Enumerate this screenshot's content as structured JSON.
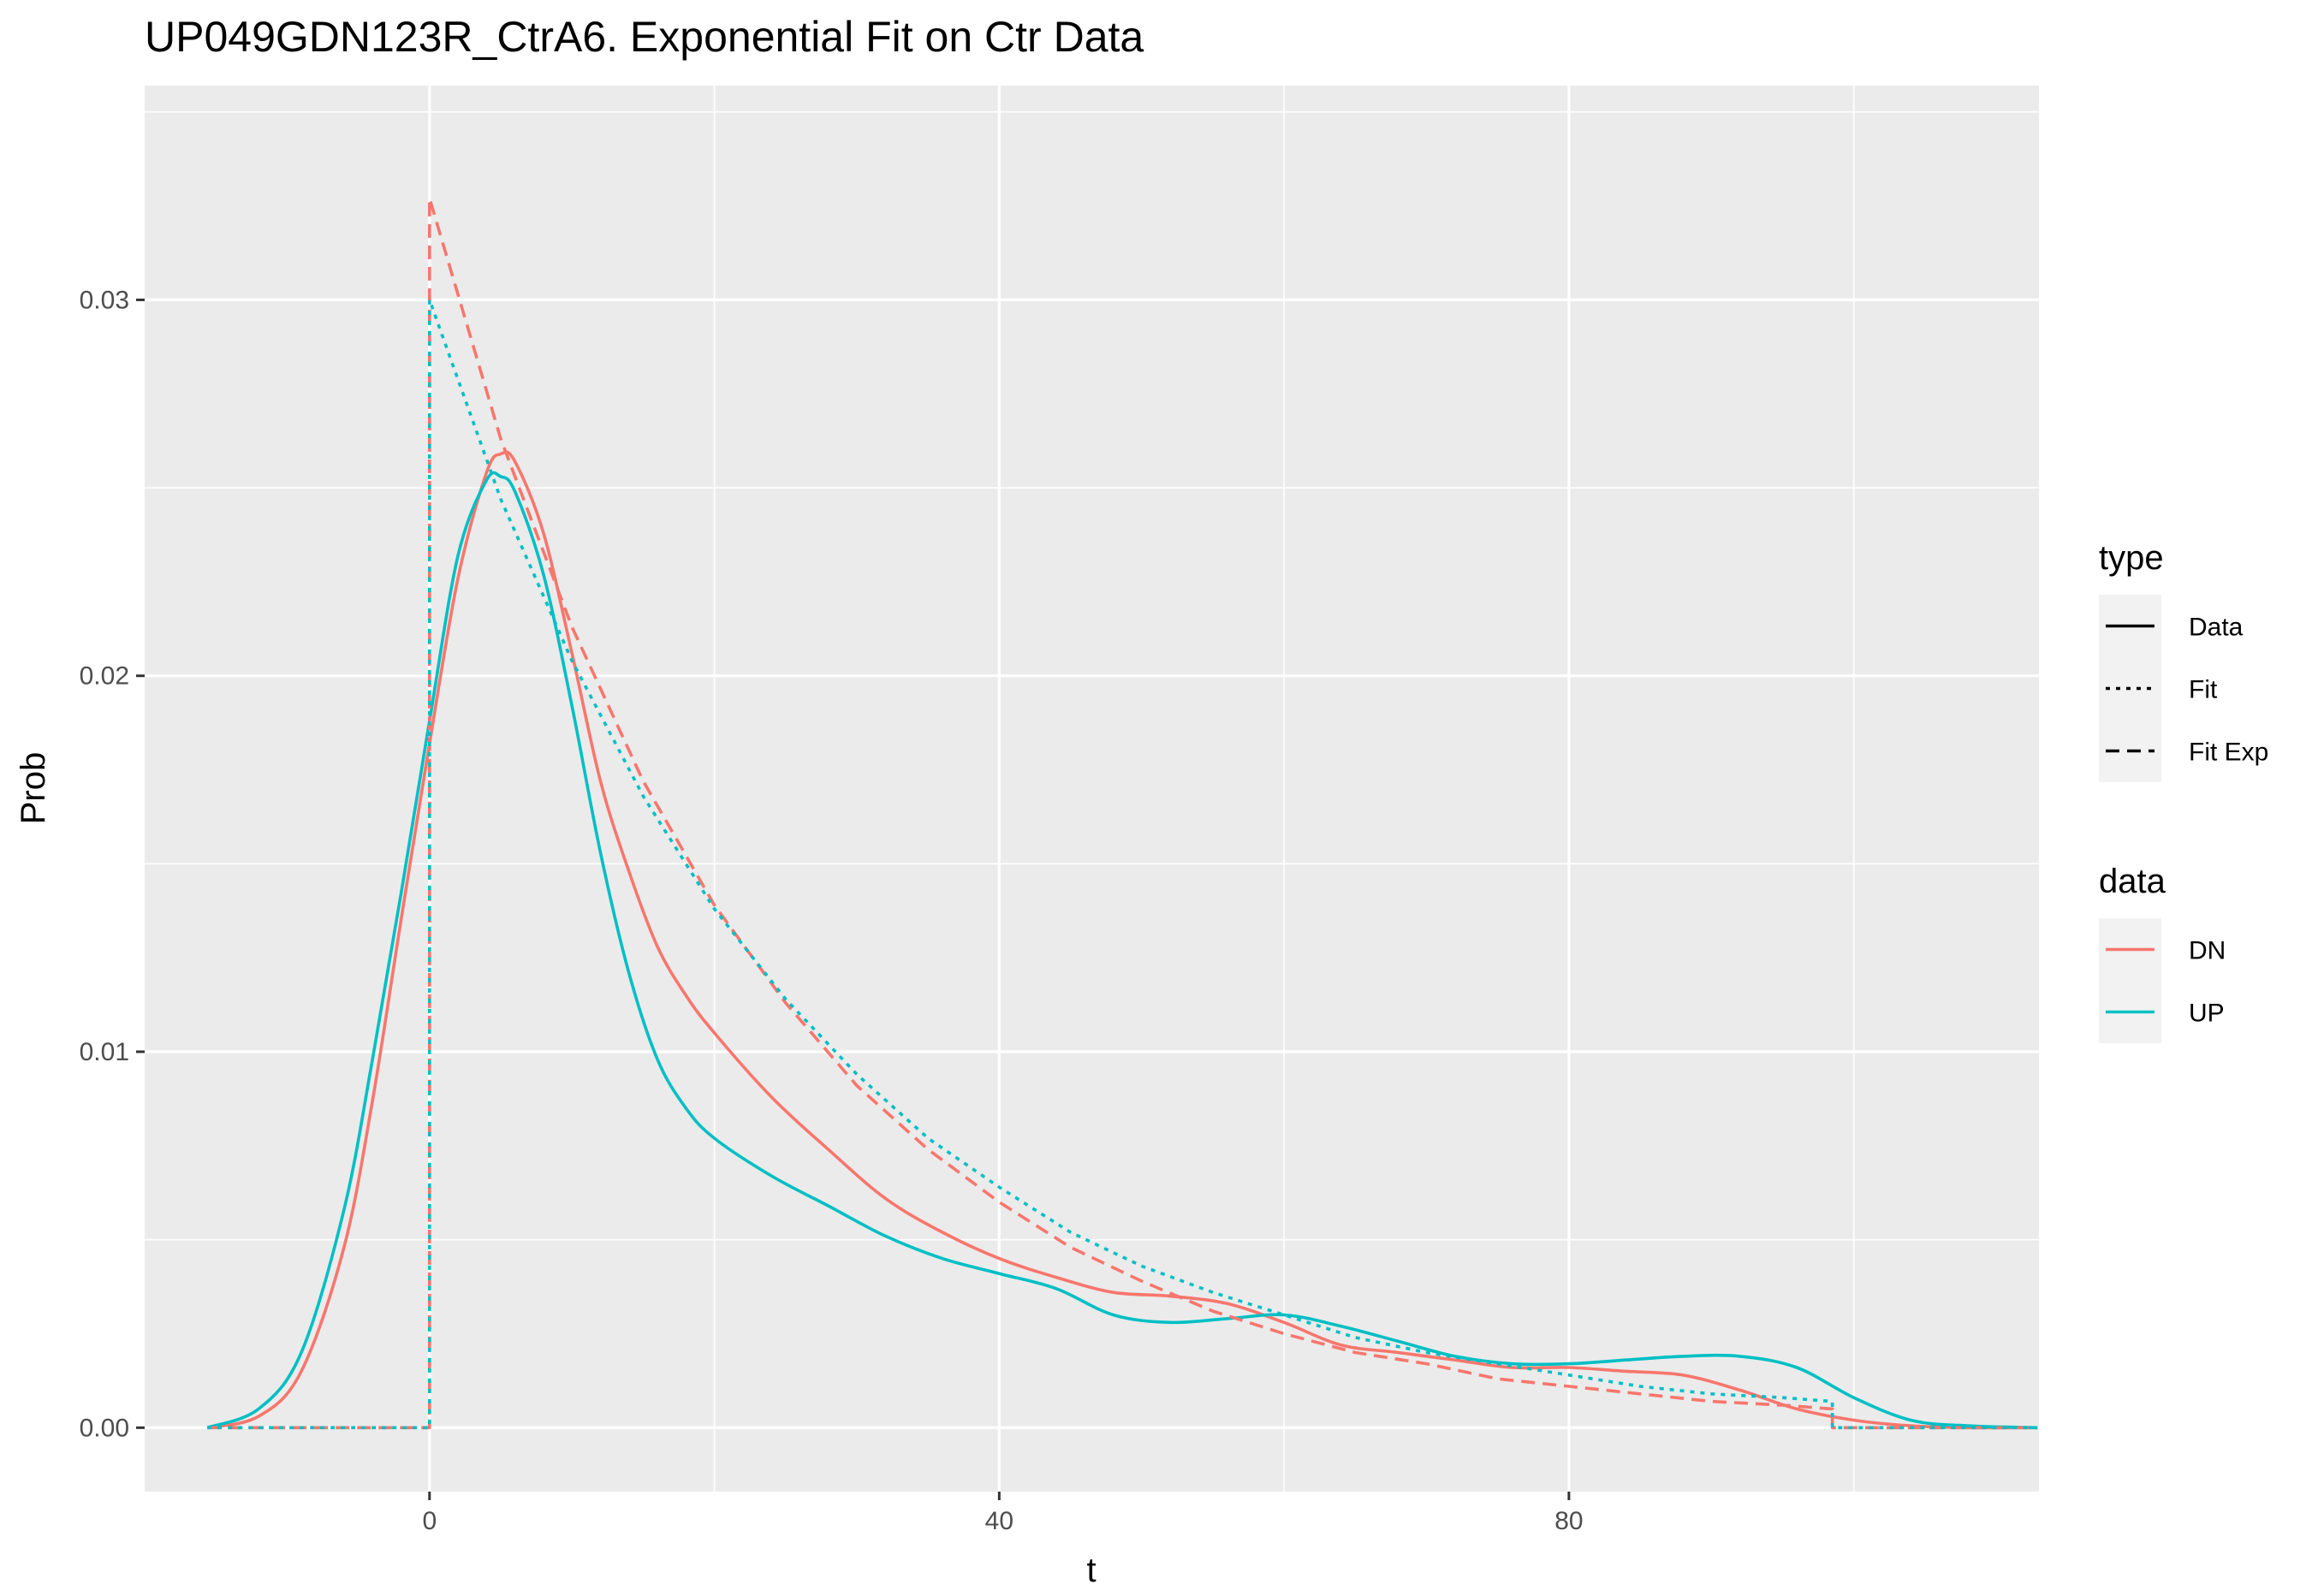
{
  "chart_data": {
    "type": "line",
    "title": "UP049GDN123R_CtrA6. Exponential Fit on Ctr Data",
    "xlabel": "t",
    "ylabel": "Prob",
    "xlim": [
      -20,
      113
    ],
    "ylim": [
      -0.0017,
      0.0357
    ],
    "x_ticks": [
      0,
      40,
      80
    ],
    "x_tick_labels": [
      "0",
      "40",
      "80"
    ],
    "y_ticks": [
      0.0,
      0.01,
      0.02,
      0.03
    ],
    "y_tick_labels": [
      "0.00",
      "0.01",
      "0.02",
      "0.03"
    ],
    "grid": true,
    "legend_placement": "right",
    "legend": {
      "type": {
        "title": "type",
        "entries": [
          {
            "label": "Data",
            "dash": "solid"
          },
          {
            "label": "Fit",
            "dash": "dotted"
          },
          {
            "label": "Fit Exp",
            "dash": "dashed"
          }
        ]
      },
      "data": {
        "title": "data",
        "entries": [
          {
            "label": "DN",
            "color": "#F8766D"
          },
          {
            "label": "UP",
            "color": "#00BFC4"
          }
        ]
      }
    },
    "colors": {
      "DN": "#F8766D",
      "UP": "#00BFC4",
      "panel": "#EBEBEB",
      "grid": "#FFFFFF"
    },
    "series": [
      {
        "data": "DN",
        "type": "Data",
        "x": [
          -15.6,
          -12,
          -9,
          -6,
          -4,
          -2,
          0,
          2,
          4,
          5,
          6,
          8,
          10,
          12,
          14,
          16,
          18,
          20,
          24,
          28,
          32,
          36,
          40,
          44,
          48,
          52,
          56,
          60,
          64,
          68,
          72,
          76,
          80,
          84,
          88,
          92,
          96,
          100,
          104,
          108,
          112.9
        ],
        "y": [
          0.0,
          0.0003,
          0.0015,
          0.0048,
          0.0087,
          0.0135,
          0.0182,
          0.0226,
          0.0254,
          0.0259,
          0.0257,
          0.0238,
          0.0206,
          0.0172,
          0.0148,
          0.0128,
          0.0115,
          0.0105,
          0.0088,
          0.0074,
          0.0061,
          0.0052,
          0.0045,
          0.004,
          0.0036,
          0.0035,
          0.0033,
          0.0028,
          0.0022,
          0.002,
          0.0018,
          0.0016,
          0.0016,
          0.0015,
          0.0014,
          0.001,
          0.0005,
          0.0002,
          5e-05,
          0.0,
          0.0
        ]
      },
      {
        "data": "UP",
        "type": "Data",
        "x": [
          -15.6,
          -12,
          -9,
          -6,
          -4,
          -2,
          0,
          2,
          4,
          5,
          6,
          8,
          10,
          12,
          14,
          16,
          18,
          20,
          24,
          28,
          32,
          36,
          40,
          44,
          48,
          52,
          56,
          60,
          64,
          68,
          72,
          76,
          80,
          84,
          88,
          92,
          96,
          100,
          104,
          108,
          112.9
        ],
        "y": [
          0.0,
          0.0005,
          0.002,
          0.0058,
          0.0098,
          0.0142,
          0.0188,
          0.0232,
          0.0252,
          0.0253,
          0.0249,
          0.0227,
          0.0192,
          0.0153,
          0.0121,
          0.0098,
          0.0085,
          0.0077,
          0.0067,
          0.0059,
          0.0051,
          0.0045,
          0.0041,
          0.0037,
          0.003,
          0.0028,
          0.0029,
          0.003,
          0.0027,
          0.0023,
          0.0019,
          0.0017,
          0.0017,
          0.0018,
          0.0019,
          0.0019,
          0.0016,
          0.0008,
          0.0002,
          5e-05,
          0.0
        ]
      },
      {
        "data": "DN",
        "type": "Fit Exp",
        "x": [
          -15.6,
          0,
          0,
          5,
          10,
          15,
          20,
          25,
          30,
          35,
          40,
          45,
          50,
          55,
          60,
          65,
          70,
          75,
          80,
          85,
          90,
          95,
          98.5,
          98.5,
          112.9
        ],
        "y": [
          0.0,
          0.0,
          0.0327,
          0.0263,
          0.0213,
          0.0172,
          0.0139,
          0.0113,
          0.0091,
          0.0074,
          0.006,
          0.0048,
          0.0039,
          0.0031,
          0.0025,
          0.002,
          0.0017,
          0.0013,
          0.0011,
          0.0009,
          0.0007,
          0.0006,
          0.0005,
          0.0,
          0.0
        ]
      },
      {
        "data": "UP",
        "type": "Fit",
        "x": [
          -15.6,
          0,
          0,
          5,
          10,
          15,
          20,
          25,
          30,
          35,
          40,
          45,
          50,
          55,
          60,
          65,
          70,
          75,
          80,
          85,
          90,
          95,
          98.5,
          98.5,
          112.9
        ],
        "y": [
          0.0,
          0.0,
          0.03,
          0.0247,
          0.0204,
          0.0168,
          0.0138,
          0.0114,
          0.0094,
          0.0077,
          0.0064,
          0.0052,
          0.0043,
          0.0036,
          0.003,
          0.0024,
          0.002,
          0.0017,
          0.0014,
          0.0011,
          0.0009,
          0.0008,
          0.0007,
          0.0,
          0.0
        ]
      }
    ]
  }
}
